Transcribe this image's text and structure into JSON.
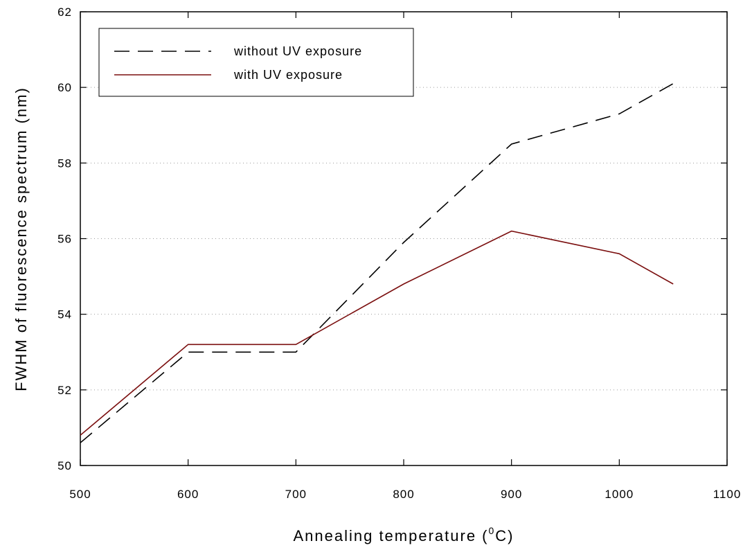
{
  "chart_data": {
    "type": "line",
    "xlabel": "Annealing temperature (",
    "xlabel_sup": "0",
    "xlabel_end": "C)",
    "ylabel": "FWHM of  fluorescence spectrum (nm)",
    "xlim": [
      500,
      1100
    ],
    "ylim": [
      50,
      62
    ],
    "xticks": [
      "500",
      "600",
      "700",
      "800",
      "900",
      "1000",
      "1100"
    ],
    "yticks": [
      "50",
      "52",
      "54",
      "56",
      "58",
      "60",
      "62"
    ],
    "grid": "dotted",
    "legend_position": "top-left",
    "series": [
      {
        "name": "without UV exposure",
        "style": "dashed",
        "color": "#000000",
        "x": [
          500,
          600,
          700,
          800,
          900,
          1000,
          1050
        ],
        "y": [
          50.6,
          53.0,
          53.0,
          55.9,
          58.5,
          59.3,
          60.1
        ]
      },
      {
        "name": "with UV exposure",
        "style": "solid",
        "color": "#7b0f0f",
        "x": [
          500,
          600,
          700,
          800,
          900,
          1000,
          1050
        ],
        "y": [
          50.8,
          53.2,
          53.2,
          54.8,
          56.2,
          55.6,
          54.8
        ]
      }
    ]
  }
}
